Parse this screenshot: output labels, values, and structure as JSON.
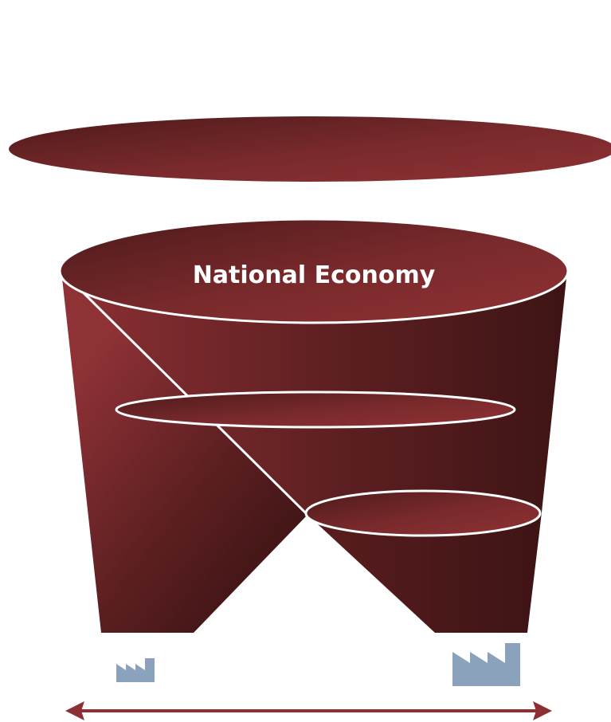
{
  "diagram": {
    "top_level_label": "National Economy",
    "colors": {
      "maroon_light": "#8c3034",
      "maroon_dark": "#441617",
      "outline": "#ffffff",
      "factory": "#8aa2bb",
      "arrow": "#8c3034"
    },
    "icons": {
      "small_factory": "factory-icon",
      "large_factory": "factory-icon",
      "scale_arrow": "double-headed-arrow"
    }
  }
}
